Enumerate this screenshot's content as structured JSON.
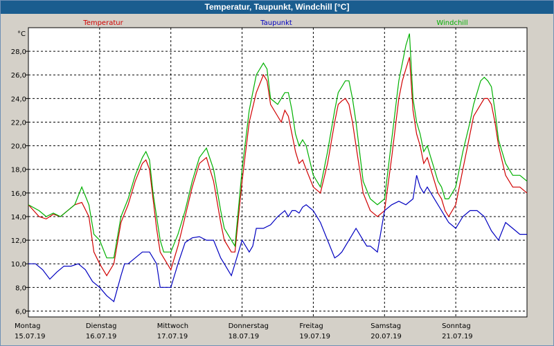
{
  "window": {
    "title": "Temperatur, Taupunkt, Windchill [°C]"
  },
  "colors": {
    "plot_bg": "#ffffff",
    "grid": "#000000",
    "temperatur": "#d00000",
    "taupunkt": "#0000c0",
    "windchill": "#00b000",
    "frame_bg": "#d4d0c8",
    "title_bg": "#1a5d8f"
  },
  "chart_data": {
    "type": "line",
    "title": "Temperatur, Taupunkt, Windchill [°C]",
    "unit_label": "°C",
    "ylim": [
      5.5,
      30.0
    ],
    "yticks": [
      "6,0",
      "8,0",
      "10,0",
      "12,0",
      "14,0",
      "16,0",
      "18,0",
      "20,0",
      "22,0",
      "24,0",
      "26,0",
      "28,0"
    ],
    "ytick_values": [
      6,
      8,
      10,
      12,
      14,
      16,
      18,
      20,
      22,
      24,
      26,
      28
    ],
    "xlim": [
      0,
      7
    ],
    "x_days": [
      {
        "day": "Montag",
        "date": "15.07.19",
        "x": 0
      },
      {
        "day": "Dienstag",
        "date": "16.07.19",
        "x": 1
      },
      {
        "day": "Mittwoch",
        "date": "17.07.19",
        "x": 2
      },
      {
        "day": "Donnerstag",
        "date": "18.07.19",
        "x": 3
      },
      {
        "day": "Freitag",
        "date": "19.07.19",
        "x": 4
      },
      {
        "day": "Samstag",
        "date": "20.07.19",
        "x": 5
      },
      {
        "day": "Sonntag",
        "date": "21.07.19",
        "x": 6
      }
    ],
    "gridlines_x": [
      1,
      2,
      3,
      4,
      5,
      6
    ],
    "series": [
      {
        "name": "Temperatur",
        "key": "temperatur",
        "x": [
          0,
          0.15,
          0.25,
          0.35,
          0.45,
          0.55,
          0.65,
          0.75,
          0.85,
          0.92,
          1.0,
          1.1,
          1.2,
          1.3,
          1.4,
          1.5,
          1.6,
          1.65,
          1.7,
          1.75,
          1.8,
          1.85,
          1.9,
          2.0,
          2.1,
          2.2,
          2.3,
          2.4,
          2.5,
          2.6,
          2.7,
          2.75,
          2.8,
          2.85,
          2.9,
          3.0,
          3.1,
          3.2,
          3.3,
          3.35,
          3.4,
          3.5,
          3.55,
          3.6,
          3.65,
          3.7,
          3.75,
          3.8,
          3.85,
          3.9,
          4.0,
          4.1,
          4.2,
          4.3,
          4.35,
          4.4,
          4.45,
          4.5,
          4.55,
          4.6,
          4.7,
          4.8,
          4.9,
          5.0,
          5.1,
          5.2,
          5.25,
          5.3,
          5.35,
          5.4,
          5.45,
          5.5,
          5.55,
          5.6,
          5.65,
          5.7,
          5.75,
          5.8,
          5.85,
          5.9,
          6.0,
          6.1,
          6.2,
          6.25,
          6.3,
          6.35,
          6.4,
          6.45,
          6.5,
          6.55,
          6.6,
          6.7,
          6.8,
          6.9,
          7.0
        ],
        "values": [
          15.0,
          14.0,
          13.8,
          14.2,
          14.0,
          14.5,
          15.0,
          15.2,
          14.0,
          11.0,
          10.0,
          9.0,
          10.0,
          13.5,
          15.0,
          17.0,
          18.5,
          18.8,
          18.0,
          15.5,
          13.0,
          11.0,
          10.5,
          9.5,
          11.5,
          14.0,
          16.5,
          18.5,
          19.0,
          17.0,
          13.5,
          12.0,
          11.5,
          11.0,
          11.0,
          17.0,
          22.0,
          24.5,
          26.0,
          25.5,
          23.5,
          22.5,
          22.0,
          23.0,
          22.5,
          21.0,
          19.5,
          18.5,
          18.8,
          18.0,
          16.5,
          16.0,
          18.5,
          22.0,
          23.5,
          23.8,
          24.0,
          23.5,
          22.0,
          20.0,
          16.0,
          14.5,
          14.0,
          14.5,
          19.0,
          24.0,
          25.5,
          26.5,
          27.5,
          23.0,
          21.0,
          20.0,
          18.5,
          19.0,
          18.0,
          17.0,
          16.0,
          15.5,
          14.5,
          14.0,
          15.0,
          18.0,
          21.0,
          22.5,
          23.0,
          23.5,
          24.0,
          24.0,
          23.5,
          22.0,
          20.0,
          17.5,
          16.5,
          16.5,
          16.0
        ]
      },
      {
        "name": "Taupunkt",
        "key": "taupunkt",
        "x": [
          0,
          0.1,
          0.2,
          0.3,
          0.4,
          0.5,
          0.6,
          0.7,
          0.8,
          0.9,
          1.0,
          1.1,
          1.2,
          1.3,
          1.35,
          1.4,
          1.5,
          1.6,
          1.7,
          1.8,
          1.85,
          1.9,
          2.0,
          2.1,
          2.2,
          2.3,
          2.4,
          2.5,
          2.6,
          2.7,
          2.75,
          2.8,
          2.85,
          2.9,
          3.0,
          3.1,
          3.15,
          3.2,
          3.3,
          3.4,
          3.5,
          3.6,
          3.65,
          3.7,
          3.75,
          3.8,
          3.85,
          3.9,
          4.0,
          4.1,
          4.2,
          4.3,
          4.35,
          4.4,
          4.5,
          4.6,
          4.65,
          4.7,
          4.75,
          4.8,
          4.9,
          5.0,
          5.1,
          5.2,
          5.3,
          5.4,
          5.45,
          5.5,
          5.55,
          5.6,
          5.7,
          5.8,
          5.9,
          6.0,
          6.1,
          6.2,
          6.3,
          6.4,
          6.5,
          6.6,
          6.7,
          6.8,
          6.9,
          7.0
        ],
        "values": [
          10.0,
          10.0,
          9.5,
          8.7,
          9.3,
          9.8,
          9.8,
          10.0,
          9.5,
          8.5,
          8.0,
          7.3,
          6.8,
          9.0,
          10.0,
          10.0,
          10.5,
          11.0,
          11.0,
          10.0,
          8.0,
          8.0,
          8.0,
          10.0,
          11.8,
          12.2,
          12.3,
          12.0,
          12.0,
          10.5,
          10.0,
          9.5,
          9.0,
          10.0,
          12.0,
          11.0,
          11.5,
          13.0,
          13.0,
          13.3,
          14.0,
          14.5,
          14.0,
          14.5,
          14.5,
          14.3,
          14.8,
          15.0,
          14.5,
          13.5,
          12.0,
          10.5,
          10.7,
          11.0,
          12.0,
          13.0,
          12.5,
          12.0,
          11.5,
          11.5,
          11.0,
          14.5,
          15.0,
          15.3,
          15.0,
          15.5,
          17.5,
          16.5,
          16.0,
          16.5,
          15.5,
          14.5,
          13.5,
          13.0,
          14.0,
          14.5,
          14.5,
          14.0,
          12.8,
          12.0,
          13.5,
          13.0,
          12.5,
          12.5
        ]
      },
      {
        "name": "Windchill",
        "key": "windchill",
        "x": [
          0,
          0.15,
          0.25,
          0.35,
          0.45,
          0.55,
          0.65,
          0.75,
          0.85,
          0.92,
          1.0,
          1.1,
          1.2,
          1.3,
          1.4,
          1.5,
          1.6,
          1.65,
          1.7,
          1.75,
          1.8,
          1.85,
          1.9,
          2.0,
          2.1,
          2.2,
          2.3,
          2.4,
          2.5,
          2.6,
          2.7,
          2.75,
          2.8,
          2.85,
          2.9,
          3.0,
          3.1,
          3.2,
          3.3,
          3.35,
          3.4,
          3.5,
          3.55,
          3.6,
          3.65,
          3.7,
          3.75,
          3.8,
          3.85,
          3.9,
          4.0,
          4.1,
          4.2,
          4.3,
          4.35,
          4.4,
          4.45,
          4.5,
          4.55,
          4.6,
          4.7,
          4.8,
          4.9,
          5.0,
          5.1,
          5.2,
          5.25,
          5.3,
          5.35,
          5.4,
          5.45,
          5.5,
          5.55,
          5.6,
          5.65,
          5.7,
          5.75,
          5.8,
          5.85,
          5.9,
          6.0,
          6.1,
          6.2,
          6.25,
          6.3,
          6.35,
          6.4,
          6.45,
          6.5,
          6.55,
          6.6,
          6.7,
          6.8,
          6.9,
          7.0
        ],
        "values": [
          15.0,
          14.5,
          14.0,
          14.3,
          14.0,
          14.5,
          15.0,
          16.5,
          15.0,
          12.5,
          12.0,
          10.5,
          10.5,
          14.0,
          15.5,
          17.5,
          19.0,
          19.5,
          18.8,
          16.0,
          14.0,
          12.0,
          11.0,
          11.0,
          12.5,
          14.5,
          17.0,
          19.0,
          19.8,
          18.0,
          14.5,
          13.0,
          12.5,
          12.0,
          11.5,
          18.0,
          23.0,
          26.0,
          27.0,
          26.5,
          24.0,
          23.5,
          24.0,
          24.5,
          24.5,
          23.0,
          21.0,
          20.0,
          20.5,
          20.0,
          17.5,
          16.5,
          19.5,
          23.0,
          24.5,
          25.0,
          25.5,
          25.5,
          24.0,
          22.0,
          17.0,
          15.5,
          15.0,
          15.5,
          20.5,
          25.5,
          27.0,
          28.5,
          29.5,
          24.0,
          22.0,
          21.0,
          19.5,
          20.0,
          19.0,
          18.0,
          17.0,
          16.5,
          15.5,
          15.5,
          16.5,
          19.5,
          22.0,
          23.5,
          24.5,
          25.5,
          25.8,
          25.5,
          25.0,
          23.0,
          20.5,
          18.5,
          17.5,
          17.5,
          17.0
        ]
      }
    ]
  }
}
